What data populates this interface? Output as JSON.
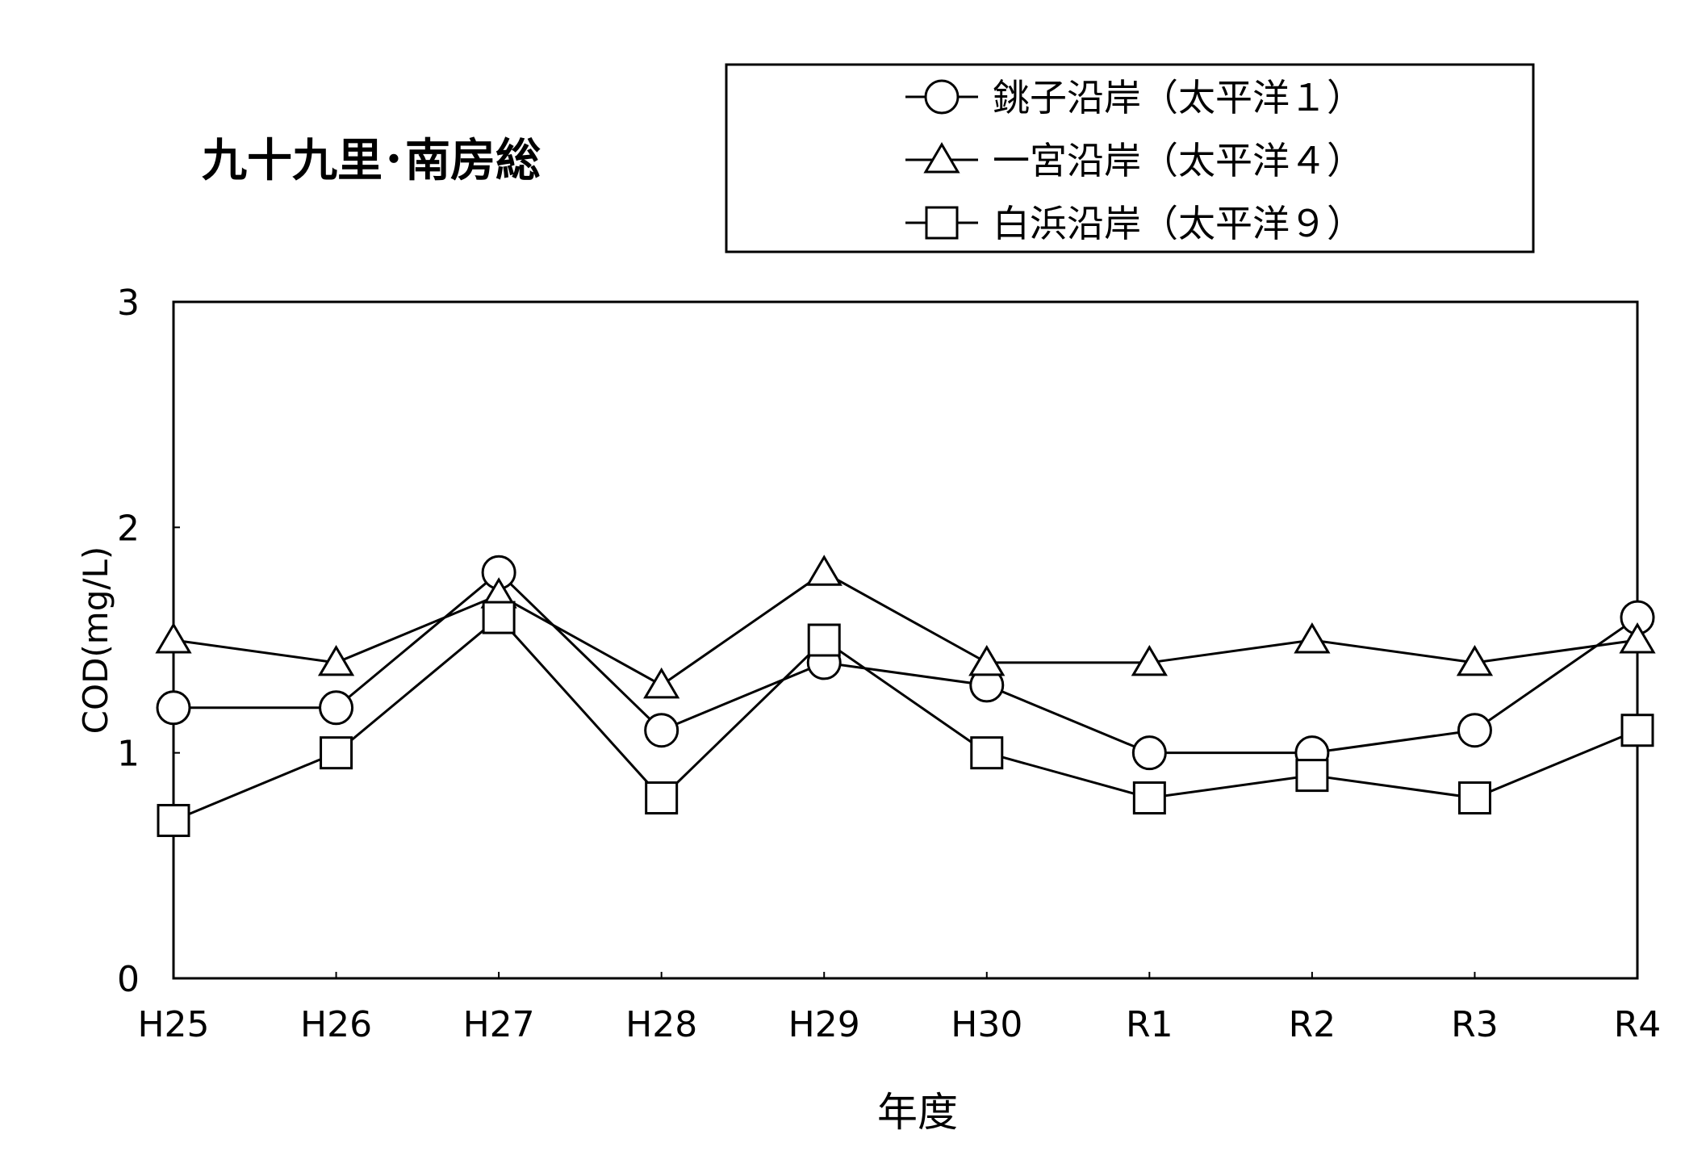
{
  "chart_data": {
    "type": "line",
    "title": "九十九里･南房総",
    "xlabel": "年度",
    "ylabel": "COD(mg/L)",
    "categories": [
      "H25",
      "H26",
      "H27",
      "H28",
      "H29",
      "H30",
      "R1",
      "R2",
      "R3",
      "R4"
    ],
    "ylim": [
      0,
      3
    ],
    "yticks": [
      0,
      1,
      2,
      3
    ],
    "grid": false,
    "legend_position": "top-right",
    "series": [
      {
        "name": "銚子沿岸（太平洋１）",
        "marker": "circle",
        "values": [
          1.2,
          1.2,
          1.8,
          1.1,
          1.4,
          1.3,
          1.0,
          1.0,
          1.1,
          1.6
        ]
      },
      {
        "name": "一宮沿岸（太平洋４）",
        "marker": "triangle",
        "values": [
          1.5,
          1.4,
          1.7,
          1.3,
          1.8,
          1.4,
          1.4,
          1.5,
          1.4,
          1.5
        ]
      },
      {
        "name": "白浜沿岸（太平洋９）",
        "marker": "square",
        "values": [
          0.7,
          1.0,
          1.6,
          0.8,
          1.5,
          1.0,
          0.8,
          0.9,
          0.8,
          1.1
        ]
      }
    ]
  }
}
